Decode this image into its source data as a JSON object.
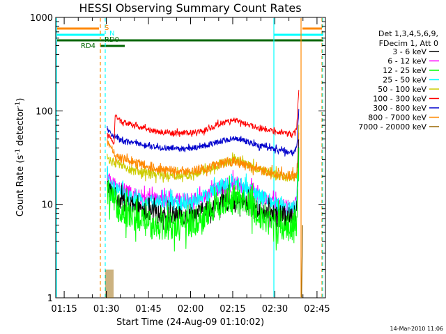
{
  "chart_data": {
    "type": "line",
    "title": "HESSI Observing Summary Count Rates",
    "xlabel": "Start Time (24-Aug-09 01:10:02)",
    "ylabel": "Count Rate (s⁻¹ detector⁻¹)",
    "ylabel_main": "Count Rate (s",
    "ylabel_sup1": "-1",
    "ylabel_mid": " detector",
    "ylabel_sup2": "-1",
    "ylabel_end": ")",
    "yscale": "log",
    "ylim": [
      1,
      1000
    ],
    "y_ticks": [
      {
        "value": 1,
        "label": "1"
      },
      {
        "value": 10,
        "label": "10"
      },
      {
        "value": 100,
        "label": "100"
      },
      {
        "value": 1000,
        "label": "1000"
      }
    ],
    "x_unit": "minutes after 01:10",
    "xlim": [
      2,
      98
    ],
    "x_ticks": [
      {
        "value": 5,
        "label": "01:15"
      },
      {
        "value": 20,
        "label": "01:30"
      },
      {
        "value": 35,
        "label": "01:45"
      },
      {
        "value": 50,
        "label": "02:00"
      },
      {
        "value": 65,
        "label": "02:15"
      },
      {
        "value": 80,
        "label": "02:30"
      },
      {
        "value": 95,
        "label": "02:45"
      }
    ],
    "legend_header": [
      "Det 1,3,4,5,6,9,",
      "FDecim 1, Att 0"
    ],
    "legend_position": "right",
    "series": [
      {
        "name": "3 - 6 keV",
        "color": "#000000",
        "x": [
          20.3,
          20.8,
          22,
          25,
          30,
          35,
          40,
          45,
          50,
          55,
          60,
          65,
          70,
          75,
          80,
          85,
          86.5,
          87.8,
          88.2,
          88.6
        ],
        "y": [
          16,
          15,
          13,
          11,
          9,
          8.2,
          7.8,
          7.6,
          7.6,
          8.5,
          10,
          11,
          10,
          8.5,
          8,
          7.5,
          7.5,
          9,
          20,
          60
        ]
      },
      {
        "name": "6 - 12 keV",
        "color": "#ff00ff",
        "x": [
          20.3,
          20.8,
          22,
          25,
          30,
          35,
          40,
          45,
          50,
          55,
          60,
          65,
          70,
          75,
          80,
          85,
          86.5,
          87.8,
          88.2,
          88.6
        ],
        "y": [
          21,
          19,
          17,
          15,
          12.5,
          11.5,
          11,
          11,
          11,
          12,
          15,
          17,
          15,
          12,
          10,
          9.5,
          9.5,
          11,
          25,
          70
        ]
      },
      {
        "name": "12 - 25 keV",
        "color": "#00ff00",
        "x": [
          20.3,
          20.8,
          22,
          25,
          30,
          35,
          40,
          45,
          50,
          55,
          60,
          65,
          70,
          75,
          80,
          85,
          86.5,
          87.8,
          88.2,
          88.6
        ],
        "y": [
          14,
          13,
          11,
          9,
          7,
          6.2,
          6,
          6,
          6.2,
          7.5,
          10,
          11.5,
          10,
          7.5,
          6.3,
          5.8,
          5.8,
          7,
          15,
          45
        ]
      },
      {
        "name": "25 - 50 keV",
        "color": "#00ffff",
        "x": [
          20.3,
          20.8,
          22,
          25,
          30,
          35,
          40,
          45,
          50,
          55,
          60,
          65,
          70,
          75,
          80,
          85,
          86.5,
          87.8,
          88.2,
          88.6
        ],
        "y": [
          18,
          17,
          15,
          13,
          11,
          10.5,
          10.2,
          10.2,
          10.5,
          12,
          15,
          16.5,
          15,
          12,
          10,
          9,
          9,
          10,
          22,
          65
        ]
      },
      {
        "name": "50 - 100 keV",
        "color": "#cccc00",
        "x": [
          20.3,
          21,
          25,
          30,
          35,
          40,
          45,
          50,
          55,
          60,
          65,
          70,
          75,
          80,
          85,
          86.5,
          87.8,
          88.2,
          88.6
        ],
        "y": [
          32,
          30,
          26,
          23,
          21,
          20.5,
          20.5,
          21,
          23,
          27,
          30,
          27,
          23,
          21,
          19,
          19,
          20,
          35,
          80
        ]
      },
      {
        "name": "100 - 300 keV",
        "color": "#ff0000",
        "x": [
          20.3,
          21,
          22.8,
          23.1,
          25,
          30,
          35,
          40,
          45,
          50,
          55,
          60,
          65,
          70,
          75,
          80,
          85,
          86.5,
          87.8,
          88.2,
          88.6
        ],
        "y": [
          55,
          52,
          46,
          90,
          78,
          70,
          63,
          59,
          58,
          58,
          62,
          72,
          80,
          72,
          64,
          60,
          56,
          56,
          65,
          120,
          190
        ]
      },
      {
        "name": "300 - 800 keV",
        "color": "#0000cc",
        "x": [
          20.3,
          21,
          22.8,
          23.1,
          25,
          30,
          35,
          40,
          45,
          50,
          55,
          60,
          65,
          70,
          75,
          80,
          85,
          86.5,
          87.8,
          88.2,
          88.6
        ],
        "y": [
          65,
          60,
          52,
          55,
          48,
          45,
          42,
          40,
          39.5,
          39.5,
          42,
          47,
          51,
          47,
          42,
          39,
          36,
          36,
          40,
          70,
          110
        ]
      },
      {
        "name": "800 - 7000 keV",
        "color": "#ff8800",
        "x": [
          20.3,
          21,
          22.8,
          23.1,
          25,
          30,
          35,
          40,
          45,
          50,
          55,
          60,
          65,
          70,
          75,
          80,
          85,
          86.5,
          87.8,
          88.2,
          88.6
        ],
        "y": [
          45,
          42,
          37,
          33,
          31,
          28,
          25,
          23.5,
          23,
          23,
          24,
          27,
          29,
          26,
          23,
          21.5,
          20.5,
          20.5,
          22,
          35,
          70
        ]
      },
      {
        "name": "7000 - 20000 keV",
        "color": "#996600",
        "x": [
          89.5,
          89.7,
          89.9
        ],
        "y": [
          1,
          2.5,
          6
        ]
      }
    ],
    "annotations": [
      {
        "text": "S",
        "color": "#ff8800"
      },
      {
        "text": "N",
        "color": "#00ffff"
      },
      {
        "text": "RD0",
        "color": "#006600"
      },
      {
        "text": "RD4",
        "color": "#006600"
      }
    ],
    "footer": "14-Mar-2010 11:06"
  }
}
